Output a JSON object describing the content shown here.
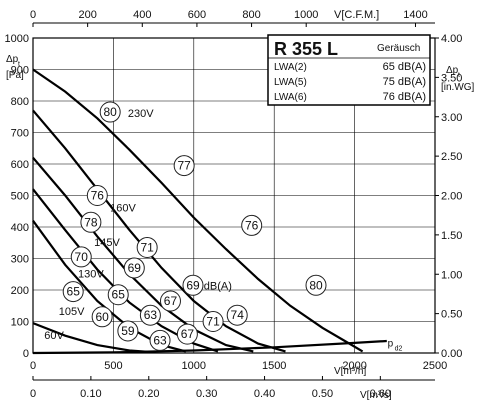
{
  "chart_data": {
    "type": "line",
    "title": "",
    "x_bottom_primary": {
      "label": "V[m³/h]",
      "min": 0,
      "max": 2500,
      "ticks": [
        "0",
        "500",
        "1000",
        "1500",
        "2000",
        "2500"
      ]
    },
    "x_bottom_secondary": {
      "label": "V[m³/s]",
      "ticks": [
        "0",
        "0.10",
        "0.20",
        "0.30",
        "0.40",
        "0.50",
        "0.60",
        "0.70"
      ]
    },
    "x_top": {
      "label": "V[C.F.M.]",
      "ticks": [
        "0",
        "200",
        "400",
        "600",
        "800",
        "1000",
        "1400"
      ]
    },
    "y_left": {
      "label_top": "Δp",
      "label_sub": "t",
      "unit": "[Pa]",
      "min": 0,
      "max": 1000,
      "ticks": [
        "0",
        "100",
        "200",
        "300",
        "400",
        "500",
        "600",
        "700",
        "800",
        "900",
        "1000"
      ]
    },
    "y_right": {
      "label_top": "Δp",
      "label_sub": "t",
      "unit": "[in.WG]",
      "ticks": [
        "0.00",
        "0.50",
        "1.00",
        "1.50",
        "2.00",
        "2.50",
        "3.00",
        "3.50",
        "4.00"
      ]
    },
    "grid": true,
    "series": [
      {
        "name": "230V",
        "x": [
          0,
          200,
          400,
          600,
          800,
          1000,
          1200,
          1400,
          1600,
          1800,
          1950,
          2050
        ],
        "y": [
          900,
          830,
          745,
          645,
          540,
          430,
          330,
          235,
          150,
          80,
          35,
          5
        ]
      },
      {
        "name": "160V",
        "x": [
          0,
          200,
          400,
          600,
          800,
          1000,
          1200,
          1400,
          1570
        ],
        "y": [
          770,
          650,
          520,
          390,
          270,
          165,
          85,
          30,
          5
        ]
      },
      {
        "name": "145V",
        "x": [
          0,
          200,
          400,
          600,
          800,
          1000,
          1200,
          1370
        ],
        "y": [
          620,
          500,
          370,
          250,
          150,
          75,
          25,
          5
        ]
      },
      {
        "name": "130V",
        "x": [
          0,
          200,
          400,
          600,
          800,
          1000,
          1150
        ],
        "y": [
          520,
          390,
          265,
          160,
          85,
          30,
          5
        ]
      },
      {
        "name": "105V",
        "x": [
          0,
          200,
          400,
          600,
          800,
          950
        ],
        "y": [
          420,
          280,
          165,
          80,
          25,
          5
        ]
      },
      {
        "name": "60V",
        "x": [
          0,
          200,
          400,
          600,
          760
        ],
        "y": [
          95,
          55,
          25,
          8,
          2
        ]
      },
      {
        "name": "p_d2",
        "x": [
          0,
          500,
          1000,
          1500,
          2000,
          2200
        ],
        "y": [
          0,
          2,
          8,
          18,
          32,
          38
        ]
      }
    ],
    "curve_labels": [
      {
        "text": "230V",
        "x": 590,
        "y": 750
      },
      {
        "text": "160V",
        "x": 480,
        "y": 450
      },
      {
        "text": "145V",
        "x": 380,
        "y": 340
      },
      {
        "text": "130V",
        "x": 280,
        "y": 240
      },
      {
        "text": "105V",
        "x": 160,
        "y": 120
      },
      {
        "text": "60V",
        "x": 70,
        "y": 45
      }
    ],
    "pd2_label": {
      "text": "p",
      "sub": "d2",
      "x": 2205,
      "y": 20
    },
    "db_label": {
      "text": "dB(A)",
      "x": 1000,
      "y": 215
    },
    "noise_points": [
      {
        "label": "80",
        "x": 480,
        "y": 765
      },
      {
        "label": "77",
        "x": 940,
        "y": 595
      },
      {
        "label": "76",
        "x": 1360,
        "y": 405
      },
      {
        "label": "80",
        "x": 1760,
        "y": 215
      },
      {
        "label": "76",
        "x": 400,
        "y": 500
      },
      {
        "label": "78",
        "x": 360,
        "y": 415
      },
      {
        "label": "71",
        "x": 710,
        "y": 335
      },
      {
        "label": "70",
        "x": 300,
        "y": 305
      },
      {
        "label": "69",
        "x": 630,
        "y": 270
      },
      {
        "label": "69",
        "x": 995,
        "y": 215
      },
      {
        "label": "65",
        "x": 250,
        "y": 195
      },
      {
        "label": "65",
        "x": 530,
        "y": 185
      },
      {
        "label": "67",
        "x": 855,
        "y": 165
      },
      {
        "label": "60",
        "x": 430,
        "y": 115
      },
      {
        "label": "63",
        "x": 730,
        "y": 120
      },
      {
        "label": "71",
        "x": 1120,
        "y": 100
      },
      {
        "label": "74",
        "x": 1270,
        "y": 120
      },
      {
        "label": "59",
        "x": 590,
        "y": 70
      },
      {
        "label": "67",
        "x": 960,
        "y": 60
      },
      {
        "label": "63",
        "x": 790,
        "y": 40
      }
    ]
  },
  "legend": {
    "model": "R 355 L",
    "header": "Geräusch",
    "rows": [
      {
        "label": "LWA(2)",
        "value": "65 dB(A)"
      },
      {
        "label": "LWA(5)",
        "value": "75 dB(A)"
      },
      {
        "label": "LWA(6)",
        "value": "76 dB(A)"
      }
    ]
  }
}
